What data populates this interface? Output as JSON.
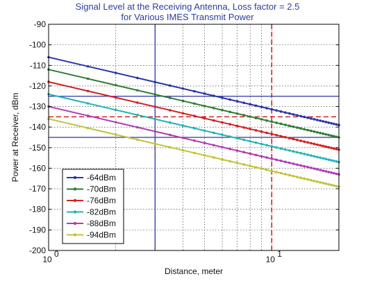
{
  "chart_data": {
    "type": "line",
    "title_line1": "Signal Level at the Receiving Antenna, Loss factor = 2.5",
    "title_line2": "for Various IMES Transmit Power",
    "xlabel": "Distance, meter",
    "ylabel": "Power at Receiver, dBm",
    "xscale": "log",
    "xlim": [
      1,
      20
    ],
    "ylim": [
      -200,
      -90
    ],
    "grid": true,
    "legend_position": "lower-left",
    "x_ticks": [
      {
        "value": 1,
        "base": "10",
        "exp": "0"
      },
      {
        "value": 10,
        "base": "10",
        "exp": "1"
      }
    ],
    "y_ticks": [
      {
        "value": -90,
        "label": "-90"
      },
      {
        "value": -100,
        "label": "-100"
      },
      {
        "value": -110,
        "label": "-110"
      },
      {
        "value": -120,
        "label": "-120"
      },
      {
        "value": -130,
        "label": "-130"
      },
      {
        "value": -140,
        "label": "-140"
      },
      {
        "value": -150,
        "label": "-150"
      },
      {
        "value": -160,
        "label": "-160"
      },
      {
        "value": -170,
        "label": "-170"
      },
      {
        "value": -180,
        "label": "-180"
      },
      {
        "value": -190,
        "label": "-190"
      },
      {
        "value": -200,
        "label": "-200"
      }
    ],
    "series": [
      {
        "name": "-64dBm",
        "color": "#2a35a8",
        "x": [
          1,
          20
        ],
        "y": [
          -106,
          -139
        ]
      },
      {
        "name": "-70dBm",
        "color": "#2e7d32",
        "x": [
          1,
          20
        ],
        "y": [
          -112,
          -145
        ]
      },
      {
        "name": "-76dBm",
        "color": "#d32020",
        "x": [
          1,
          20
        ],
        "y": [
          -118,
          -151
        ]
      },
      {
        "name": "-82dBm",
        "color": "#22b3b3",
        "x": [
          1,
          20
        ],
        "y": [
          -124,
          -157
        ]
      },
      {
        "name": "-88dBm",
        "color": "#b23ab2",
        "x": [
          1,
          20
        ],
        "y": [
          -130,
          -163
        ]
      },
      {
        "name": "-94dBm",
        "color": "#c2c236",
        "x": [
          1,
          20
        ],
        "y": [
          -136,
          -169
        ]
      }
    ],
    "reference_lines": [
      {
        "orientation": "vertical",
        "value": 3,
        "color": "#2a35a8",
        "style": "solid"
      },
      {
        "orientation": "horizontal",
        "value": -125,
        "color": "#2a35a8",
        "style": "solid"
      },
      {
        "orientation": "horizontal",
        "value": -145,
        "color": "#2a35a8",
        "style": "solid"
      },
      {
        "orientation": "vertical",
        "value": 10,
        "color": "#d32020",
        "style": "dashed"
      },
      {
        "orientation": "horizontal",
        "value": -135,
        "color": "#d32020",
        "style": "dashed"
      }
    ]
  }
}
